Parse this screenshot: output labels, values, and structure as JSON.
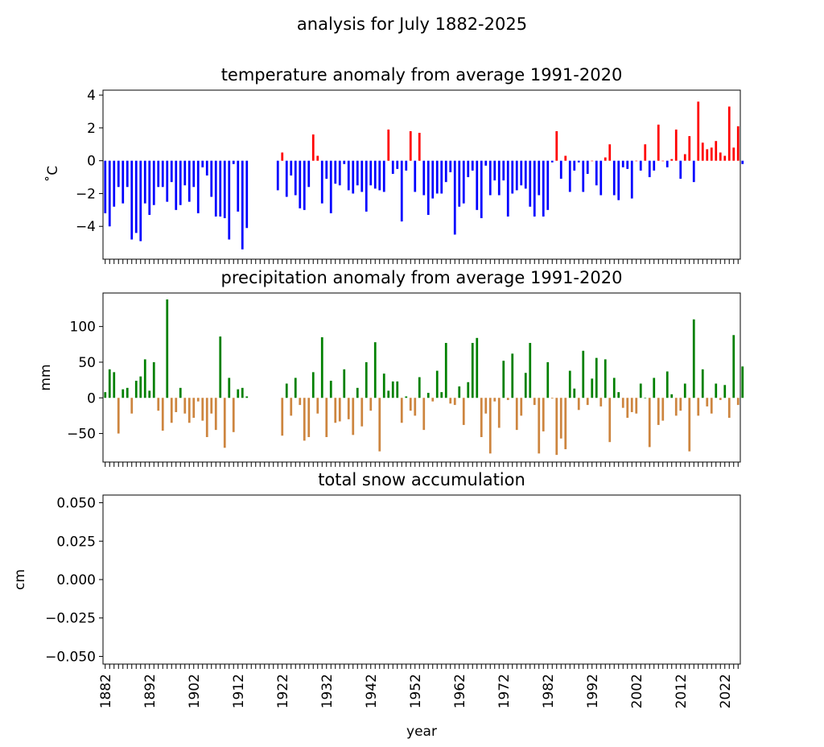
{
  "figure": {
    "suptitle": "analysis for July 1882-2025",
    "xlabel": "year"
  },
  "colors": {
    "temp_positive": "#ff0000",
    "temp_negative": "#0000ff",
    "precip_positive": "#008000",
    "precip_negative": "#cd853f"
  },
  "chart_data": [
    {
      "type": "bar",
      "title": "temperature anomaly from average 1991-2020",
      "ylabel": "˚C",
      "ylim": [
        -6.0,
        4.3
      ],
      "yticks": [
        4,
        2,
        0,
        -2,
        -4
      ],
      "ytick_labels": [
        "4",
        "2",
        "0",
        "−2",
        "−4"
      ],
      "x_start": 1882,
      "xlim": [
        1881.5,
        2025.5
      ],
      "values": [
        -3.2,
        -4.0,
        -2.8,
        -1.6,
        -2.6,
        -1.6,
        -4.8,
        -4.4,
        -4.9,
        -2.6,
        -3.3,
        -2.7,
        -1.6,
        -1.6,
        -2.5,
        -1.3,
        -3.0,
        -2.7,
        -1.5,
        -2.5,
        -1.6,
        -3.2,
        -0.4,
        -0.9,
        -2.2,
        -3.4,
        -3.4,
        -3.5,
        -4.8,
        -0.2,
        -3.1,
        -5.4,
        -4.1,
        null,
        null,
        null,
        null,
        null,
        null,
        -1.8,
        0.5,
        -2.2,
        -0.9,
        -2.1,
        -2.9,
        -3.0,
        -1.6,
        1.6,
        0.3,
        -2.6,
        -1.1,
        -3.2,
        -1.4,
        -1.5,
        -0.2,
        -1.8,
        -2.0,
        -1.5,
        -1.9,
        -3.1,
        -1.5,
        -1.7,
        -1.8,
        -1.9,
        1.9,
        -0.8,
        -0.5,
        -3.7,
        -0.6,
        1.8,
        -1.9,
        1.7,
        -2.1,
        -3.3,
        -2.3,
        -2.0,
        -2.0,
        -1.3,
        -0.7,
        -4.5,
        -2.8,
        -2.6,
        -1.0,
        -0.6,
        -3.0,
        -3.5,
        -0.3,
        -2.1,
        -1.2,
        -2.1,
        -1.2,
        -3.4,
        -2.0,
        -1.8,
        -1.5,
        -1.7,
        -2.8,
        -3.4,
        -2.1,
        -3.4,
        -3.0,
        -0.1,
        1.8,
        -1.1,
        0.3,
        -1.9,
        -0.6,
        -0.1,
        -1.9,
        -0.8,
        0.0,
        -1.5,
        -2.1,
        0.2,
        1.0,
        -2.1,
        -2.4,
        -0.4,
        -0.5,
        -2.3,
        0.0,
        -0.6,
        1.0,
        -1.0,
        -0.6,
        2.2,
        0.0,
        -0.4,
        0.1,
        1.9,
        -1.1,
        0.4,
        1.5,
        -1.3,
        3.6,
        1.1,
        0.7,
        0.8,
        1.2,
        0.5,
        0.3,
        3.3,
        0.8,
        2.1,
        -0.2
      ],
      "xtick_years": [
        1882,
        1892,
        1902,
        1912,
        1922,
        1932,
        1942,
        1952,
        1962,
        1972,
        1982,
        1992,
        2002,
        2012,
        2022
      ]
    },
    {
      "type": "bar",
      "title": "precipitation anomaly from average 1991-2020",
      "ylabel": "mm",
      "ylim": [
        -90,
        147
      ],
      "yticks": [
        100,
        50,
        0,
        -50
      ],
      "ytick_labels": [
        "100",
        "50",
        "0",
        "−50"
      ],
      "x_start": 1882,
      "xlim": [
        1881.5,
        2025.5
      ],
      "values": [
        8,
        40,
        36,
        -50,
        12,
        14,
        -22,
        24,
        30,
        54,
        10,
        50,
        -18,
        -46,
        138,
        -35,
        -20,
        14,
        -22,
        -35,
        -28,
        -5,
        -32,
        -55,
        -22,
        -45,
        86,
        -70,
        28,
        -48,
        12,
        14,
        2,
        null,
        null,
        null,
        null,
        null,
        null,
        null,
        -53,
        20,
        -25,
        28,
        -10,
        -60,
        -55,
        36,
        -22,
        85,
        -55,
        24,
        -35,
        -33,
        40,
        -30,
        -52,
        14,
        -40,
        50,
        -18,
        78,
        -75,
        34,
        10,
        23,
        23,
        -35,
        2,
        -18,
        -25,
        29,
        -45,
        7,
        -5,
        38,
        8,
        77,
        -8,
        -10,
        16,
        -38,
        22,
        77,
        84,
        -55,
        -22,
        -78,
        -5,
        -42,
        52,
        -3,
        62,
        -45,
        -25,
        35,
        77,
        -10,
        -78,
        -47,
        50,
        -1,
        -80,
        -57,
        -72,
        38,
        13,
        -17,
        66,
        -10,
        27,
        56,
        -12,
        54,
        -62,
        28,
        8,
        -14,
        -28,
        -20,
        -22,
        20,
        0,
        -69,
        28,
        -38,
        -32,
        37,
        5,
        -25,
        -18,
        20,
        -75,
        110,
        -25,
        40,
        -12,
        -22,
        20,
        -3,
        18,
        -28,
        88,
        -10,
        44
      ],
      "xtick_years": [
        1882,
        1892,
        1902,
        1912,
        1922,
        1932,
        1942,
        1952,
        1962,
        1972,
        1982,
        1992,
        2002,
        2012,
        2022
      ]
    },
    {
      "type": "bar",
      "title": "total snow accumulation",
      "ylabel": "cm",
      "ylim": [
        -0.055,
        0.055
      ],
      "yticks": [
        0.05,
        0.025,
        0.0,
        -0.025,
        -0.05
      ],
      "ytick_labels": [
        "0.050",
        "0.025",
        "0.000",
        "−0.025",
        "−0.050"
      ],
      "x_start": 1882,
      "xlim": [
        1881.5,
        2025.5
      ],
      "values": [],
      "xtick_years": [
        1882,
        1892,
        1902,
        1912,
        1922,
        1932,
        1942,
        1952,
        1962,
        1972,
        1982,
        1992,
        2002,
        2012,
        2022
      ],
      "xtick_labels": [
        "1882",
        "1892",
        "1902",
        "1912",
        "1922",
        "1932",
        "1942",
        "1952",
        "1962",
        "1972",
        "1982",
        "1992",
        "2002",
        "2012",
        "2022"
      ]
    }
  ]
}
